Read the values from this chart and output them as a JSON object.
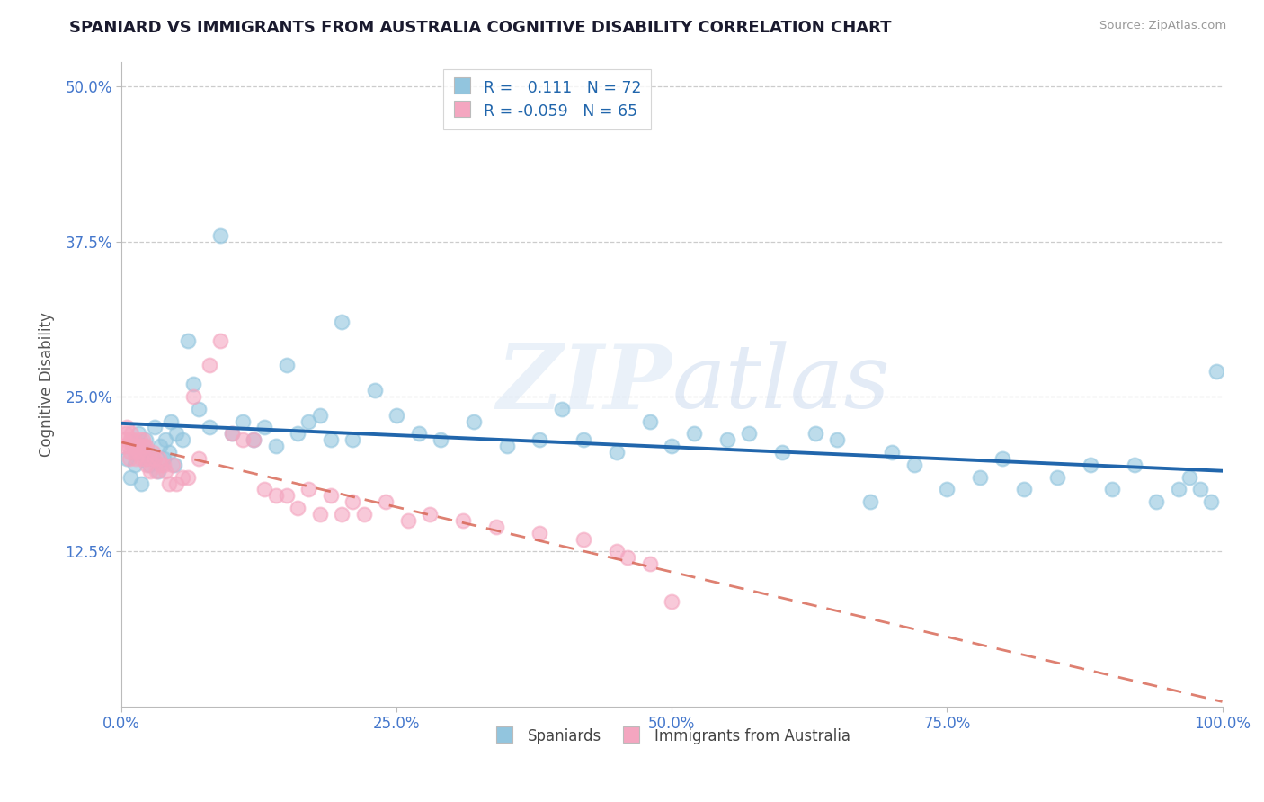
{
  "title": "SPANIARD VS IMMIGRANTS FROM AUSTRALIA COGNITIVE DISABILITY CORRELATION CHART",
  "source": "Source: ZipAtlas.com",
  "tick_color": "#4477cc",
  "ylabel": "Cognitive Disability",
  "xlim": [
    0.0,
    1.0
  ],
  "ylim": [
    0.0,
    0.52
  ],
  "xticks": [
    0.0,
    0.25,
    0.5,
    0.75,
    1.0
  ],
  "xtick_labels": [
    "0.0%",
    "25.0%",
    "50.0%",
    "75.0%",
    "100.0%"
  ],
  "yticks": [
    0.125,
    0.25,
    0.375,
    0.5
  ],
  "ytick_labels": [
    "12.5%",
    "25.0%",
    "37.5%",
    "50.0%"
  ],
  "blue_color": "#92c5de",
  "pink_color": "#f4a6c0",
  "blue_line_color": "#2166ac",
  "pink_line_color": "#d6604d",
  "watermark_zip": "ZIP",
  "watermark_atlas": "atlas",
  "blue_r": "0.111",
  "blue_n": "72",
  "pink_r": "-0.059",
  "pink_n": "65",
  "blue_scatter_x": [
    0.005,
    0.008,
    0.01,
    0.012,
    0.015,
    0.018,
    0.02,
    0.022,
    0.025,
    0.028,
    0.03,
    0.033,
    0.035,
    0.038,
    0.04,
    0.043,
    0.045,
    0.048,
    0.05,
    0.055,
    0.06,
    0.065,
    0.07,
    0.08,
    0.09,
    0.1,
    0.11,
    0.12,
    0.13,
    0.14,
    0.15,
    0.16,
    0.17,
    0.18,
    0.19,
    0.2,
    0.21,
    0.23,
    0.25,
    0.27,
    0.29,
    0.32,
    0.35,
    0.38,
    0.4,
    0.42,
    0.45,
    0.48,
    0.5,
    0.52,
    0.55,
    0.57,
    0.6,
    0.63,
    0.65,
    0.68,
    0.7,
    0.72,
    0.75,
    0.78,
    0.8,
    0.82,
    0.85,
    0.88,
    0.9,
    0.92,
    0.94,
    0.96,
    0.97,
    0.98,
    0.99,
    0.995
  ],
  "blue_scatter_y": [
    0.2,
    0.185,
    0.21,
    0.195,
    0.22,
    0.18,
    0.205,
    0.215,
    0.195,
    0.2,
    0.225,
    0.19,
    0.21,
    0.2,
    0.215,
    0.205,
    0.23,
    0.195,
    0.22,
    0.215,
    0.295,
    0.26,
    0.24,
    0.225,
    0.38,
    0.22,
    0.23,
    0.215,
    0.225,
    0.21,
    0.275,
    0.22,
    0.23,
    0.235,
    0.215,
    0.31,
    0.215,
    0.255,
    0.235,
    0.22,
    0.215,
    0.23,
    0.21,
    0.215,
    0.24,
    0.215,
    0.205,
    0.23,
    0.21,
    0.22,
    0.215,
    0.22,
    0.205,
    0.22,
    0.215,
    0.165,
    0.205,
    0.195,
    0.175,
    0.185,
    0.2,
    0.175,
    0.185,
    0.195,
    0.175,
    0.195,
    0.165,
    0.175,
    0.185,
    0.175,
    0.165,
    0.27
  ],
  "pink_scatter_x": [
    0.002,
    0.003,
    0.004,
    0.005,
    0.006,
    0.007,
    0.008,
    0.008,
    0.009,
    0.01,
    0.011,
    0.012,
    0.013,
    0.014,
    0.015,
    0.016,
    0.017,
    0.018,
    0.019,
    0.02,
    0.021,
    0.022,
    0.023,
    0.025,
    0.026,
    0.028,
    0.03,
    0.032,
    0.034,
    0.036,
    0.038,
    0.04,
    0.043,
    0.046,
    0.05,
    0.055,
    0.06,
    0.065,
    0.07,
    0.08,
    0.09,
    0.1,
    0.11,
    0.12,
    0.13,
    0.14,
    0.15,
    0.16,
    0.17,
    0.18,
    0.19,
    0.2,
    0.21,
    0.22,
    0.24,
    0.26,
    0.28,
    0.31,
    0.34,
    0.38,
    0.42,
    0.45,
    0.46,
    0.48,
    0.5
  ],
  "pink_scatter_y": [
    0.21,
    0.215,
    0.22,
    0.225,
    0.21,
    0.2,
    0.215,
    0.205,
    0.22,
    0.21,
    0.215,
    0.205,
    0.2,
    0.21,
    0.205,
    0.21,
    0.215,
    0.2,
    0.215,
    0.21,
    0.2,
    0.21,
    0.195,
    0.2,
    0.19,
    0.205,
    0.2,
    0.19,
    0.2,
    0.195,
    0.195,
    0.19,
    0.18,
    0.195,
    0.18,
    0.185,
    0.185,
    0.25,
    0.2,
    0.275,
    0.295,
    0.22,
    0.215,
    0.215,
    0.175,
    0.17,
    0.17,
    0.16,
    0.175,
    0.155,
    0.17,
    0.155,
    0.165,
    0.155,
    0.165,
    0.15,
    0.155,
    0.15,
    0.145,
    0.14,
    0.135,
    0.125,
    0.12,
    0.115,
    0.085
  ]
}
